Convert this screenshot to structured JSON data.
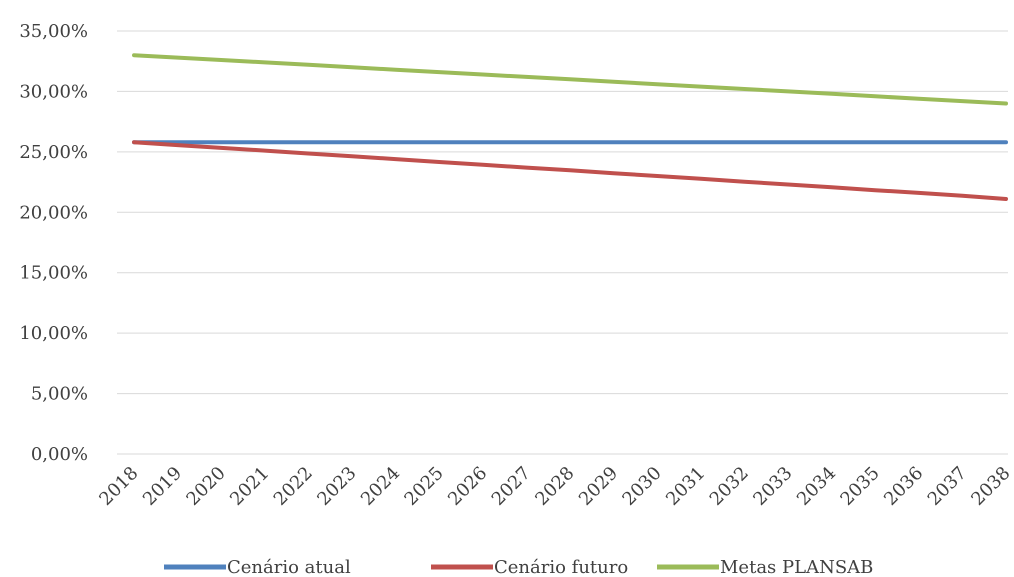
{
  "chart_data": {
    "type": "line",
    "title": "",
    "xlabel": "",
    "ylabel": "",
    "x": [
      "2018",
      "2019",
      "2020",
      "2021",
      "2022",
      "2023",
      "2024",
      "2025",
      "2026",
      "2027",
      "2028",
      "2029",
      "2030",
      "2031",
      "2032",
      "2033",
      "2034",
      "2035",
      "2036",
      "2037",
      "2038"
    ],
    "ylim": [
      0,
      35
    ],
    "yticks": [
      0,
      5,
      10,
      15,
      20,
      25,
      30,
      35
    ],
    "ytick_labels": [
      "0,00%",
      "5,00%",
      "10,00%",
      "15,00%",
      "20,00%",
      "25,00%",
      "30,00%",
      "35,00%"
    ],
    "grid": true,
    "legend_position": "bottom",
    "series": [
      {
        "name": "Cenário atual",
        "color": "#4f81bd",
        "values": [
          25.8,
          25.8,
          25.8,
          25.8,
          25.8,
          25.8,
          25.8,
          25.8,
          25.8,
          25.8,
          25.8,
          25.8,
          25.8,
          25.8,
          25.8,
          25.8,
          25.8,
          25.8,
          25.8,
          25.8,
          25.8
        ]
      },
      {
        "name": "Cenário futuro",
        "color": "#c0504d",
        "values": [
          25.8,
          25.56,
          25.33,
          25.1,
          24.86,
          24.63,
          24.4,
          24.16,
          23.93,
          23.7,
          23.47,
          23.23,
          23.0,
          22.77,
          22.53,
          22.3,
          22.07,
          21.83,
          21.6,
          21.37,
          21.1
        ]
      },
      {
        "name": "Metas PLANSAB",
        "color": "#9bbb59",
        "values": [
          33.0,
          32.8,
          32.6,
          32.4,
          32.2,
          32.0,
          31.8,
          31.6,
          31.4,
          31.2,
          31.0,
          30.8,
          30.6,
          30.4,
          30.2,
          30.0,
          29.8,
          29.6,
          29.4,
          29.2,
          29.0
        ]
      }
    ]
  }
}
